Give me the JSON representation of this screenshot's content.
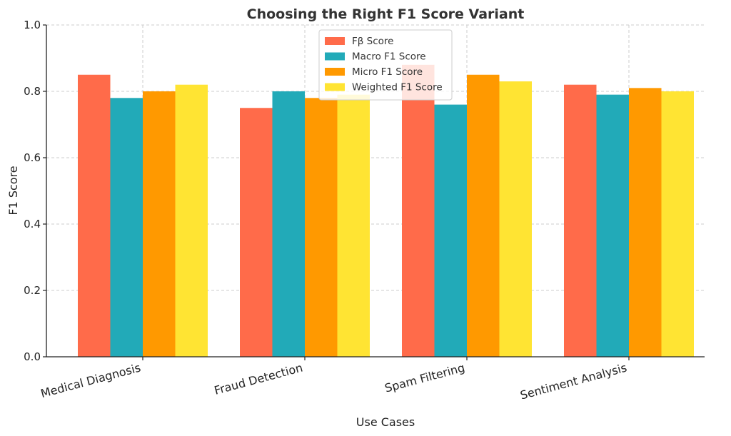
{
  "chart_data": {
    "type": "bar",
    "title": "Choosing the Right F1 Score Variant",
    "xlabel": "Use Cases",
    "ylabel": "F1 Score",
    "ylim": [
      0,
      1.0
    ],
    "yticks": [
      "0.0",
      "0.2",
      "0.4",
      "0.6",
      "0.8",
      "1.0"
    ],
    "grid": true,
    "legend_position": "top-center",
    "categories": [
      "Medical Diagnosis",
      "Fraud Detection",
      "Spam Filtering",
      "Sentiment Analysis"
    ],
    "series": [
      {
        "name": "Fβ Score",
        "color": "#FF6B4A",
        "values": [
          0.85,
          0.75,
          0.88,
          0.82
        ]
      },
      {
        "name": "Macro F1 Score",
        "color": "#22AAB8",
        "values": [
          0.78,
          0.8,
          0.76,
          0.79
        ]
      },
      {
        "name": "Micro F1 Score",
        "color": "#FF9900",
        "values": [
          0.8,
          0.78,
          0.85,
          0.81
        ]
      },
      {
        "name": "Weighted F1 Score",
        "color": "#FFE433",
        "values": [
          0.82,
          0.79,
          0.83,
          0.8
        ]
      }
    ]
  }
}
